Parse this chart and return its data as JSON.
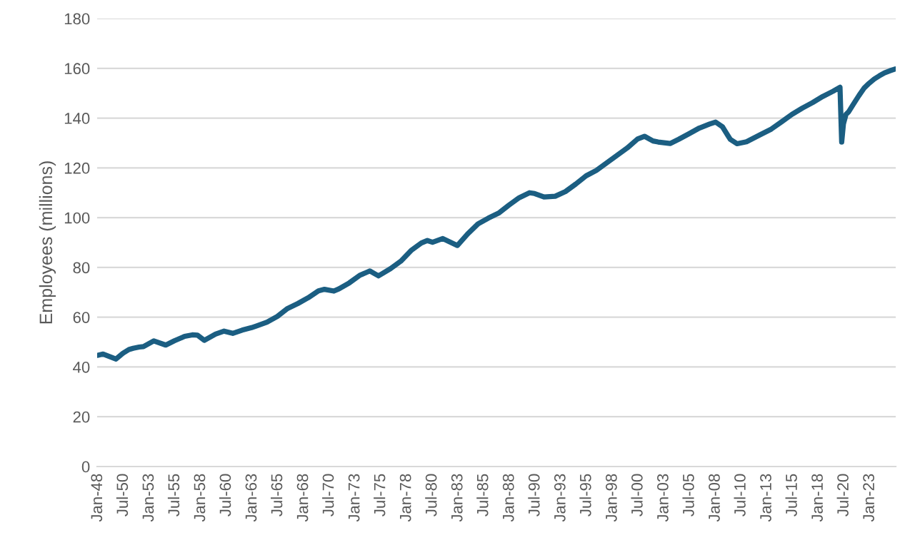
{
  "chart_data": {
    "type": "line",
    "ylabel": "Employees (millions)",
    "x": [
      "1948-01",
      "1948-07",
      "1949-10",
      "1950-06",
      "1951-01",
      "1951-06",
      "1952-01",
      "1952-06",
      "1953-06",
      "1954-08",
      "1955-06",
      "1956-06",
      "1957-03",
      "1957-09",
      "1958-05",
      "1959-06",
      "1960-04",
      "1961-02",
      "1962-01",
      "1962-12",
      "1963-06",
      "1964-06",
      "1965-06",
      "1966-06",
      "1967-06",
      "1968-06",
      "1969-06",
      "1970-01",
      "1970-12",
      "1971-06",
      "1972-06",
      "1973-06",
      "1974-06",
      "1975-04",
      "1976-06",
      "1977-06",
      "1978-06",
      "1979-06",
      "1980-01",
      "1980-07",
      "1981-07",
      "1982-12",
      "1983-12",
      "1984-12",
      "1985-12",
      "1986-12",
      "1987-12",
      "1988-12",
      "1989-12",
      "1990-06",
      "1991-05",
      "1992-06",
      "1993-06",
      "1994-06",
      "1995-06",
      "1996-06",
      "1997-06",
      "1998-06",
      "1999-06",
      "2000-06",
      "2001-02",
      "2001-12",
      "2002-06",
      "2003-08",
      "2004-06",
      "2005-06",
      "2006-06",
      "2007-06",
      "2008-01",
      "2008-09",
      "2009-06",
      "2010-02",
      "2011-01",
      "2012-06",
      "2013-06",
      "2014-06",
      "2015-06",
      "2016-06",
      "2017-06",
      "2018-06",
      "2019-06",
      "2020-02",
      "2020-04",
      "2020-06",
      "2020-09",
      "2020-12",
      "2021-06",
      "2021-12",
      "2022-06",
      "2022-12",
      "2023-06",
      "2023-12",
      "2024-06",
      "2024-12",
      "2025-06"
    ],
    "series": [
      {
        "color": "#1b5e82",
        "values": [
          44.7,
          45.2,
          43.2,
          45.5,
          47.0,
          47.5,
          48.0,
          48.2,
          50.5,
          48.8,
          50.5,
          52.3,
          52.9,
          52.8,
          50.7,
          53.2,
          54.4,
          53.5,
          54.8,
          55.8,
          56.5,
          58.0,
          60.3,
          63.5,
          65.5,
          67.8,
          70.6,
          71.2,
          70.5,
          71.4,
          73.8,
          76.8,
          78.6,
          76.6,
          79.5,
          82.5,
          86.8,
          89.8,
          90.8,
          90.1,
          91.6,
          88.8,
          93.5,
          97.5,
          99.8,
          101.8,
          105.0,
          108.0,
          110.0,
          109.7,
          108.3,
          108.6,
          110.5,
          113.5,
          116.8,
          119.0,
          122.0,
          125.0,
          128.0,
          131.6,
          132.7,
          130.8,
          130.4,
          129.8,
          131.5,
          133.7,
          136.0,
          137.6,
          138.4,
          136.5,
          131.5,
          129.7,
          130.5,
          133.5,
          135.6,
          138.5,
          141.5,
          144.0,
          146.2,
          148.7,
          150.8,
          152.4,
          130.4,
          137.6,
          141.5,
          142.5,
          145.8,
          149.0,
          152.0,
          154.0,
          155.7,
          157.0,
          158.2,
          159.0,
          159.7
        ]
      }
    ],
    "xlim": [
      "1947-12",
      "2025-07"
    ],
    "xticks": [
      {
        "value": "1948-01",
        "label": "Jan-48"
      },
      {
        "value": "1950-07",
        "label": "Jul-50"
      },
      {
        "value": "1953-01",
        "label": "Jan-53"
      },
      {
        "value": "1955-07",
        "label": "Jul-55"
      },
      {
        "value": "1958-01",
        "label": "Jan-58"
      },
      {
        "value": "1960-07",
        "label": "Jul-60"
      },
      {
        "value": "1963-01",
        "label": "Jan-63"
      },
      {
        "value": "1965-07",
        "label": "Jul-65"
      },
      {
        "value": "1968-01",
        "label": "Jan-68"
      },
      {
        "value": "1970-07",
        "label": "Jul-70"
      },
      {
        "value": "1973-01",
        "label": "Jan-73"
      },
      {
        "value": "1975-07",
        "label": "Jul-75"
      },
      {
        "value": "1978-01",
        "label": "Jan-78"
      },
      {
        "value": "1980-07",
        "label": "Jul-80"
      },
      {
        "value": "1983-01",
        "label": "Jan-83"
      },
      {
        "value": "1985-07",
        "label": "Jul-85"
      },
      {
        "value": "1988-01",
        "label": "Jan-88"
      },
      {
        "value": "1990-07",
        "label": "Jul-90"
      },
      {
        "value": "1993-01",
        "label": "Jan-93"
      },
      {
        "value": "1995-07",
        "label": "Jul-95"
      },
      {
        "value": "1998-01",
        "label": "Jan-98"
      },
      {
        "value": "2000-07",
        "label": "Jul-00"
      },
      {
        "value": "2003-01",
        "label": "Jan-03"
      },
      {
        "value": "2005-07",
        "label": "Jul-05"
      },
      {
        "value": "2008-01",
        "label": "Jan-08"
      },
      {
        "value": "2010-07",
        "label": "Jul-10"
      },
      {
        "value": "2013-01",
        "label": "Jan-13"
      },
      {
        "value": "2015-07",
        "label": "Jul-15"
      },
      {
        "value": "2018-01",
        "label": "Jan-18"
      },
      {
        "value": "2020-07",
        "label": "Jul-20"
      },
      {
        "value": "2023-01",
        "label": "Jan-23"
      }
    ],
    "ylim": [
      0,
      180
    ],
    "yticks": [
      0,
      20,
      40,
      60,
      80,
      100,
      120,
      140,
      160,
      180
    ],
    "grid": "y",
    "legend": false,
    "marker": "none",
    "line_style": "solid"
  }
}
